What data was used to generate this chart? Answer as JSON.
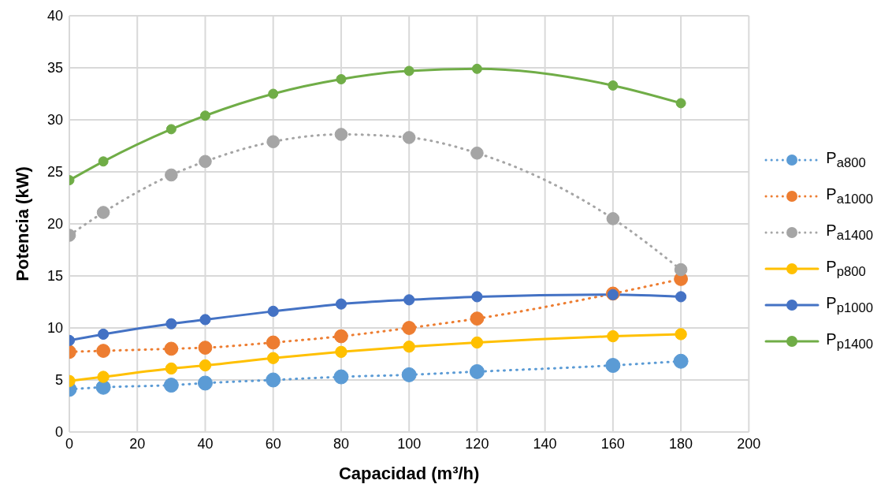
{
  "chart_data": {
    "type": "line",
    "xlabel": "Capacidad (m³/h)",
    "ylabel": "Potencia (kW)",
    "x": [
      0,
      10,
      30,
      40,
      60,
      80,
      100,
      120,
      160,
      180
    ],
    "xlim": [
      0,
      200
    ],
    "xticks": [
      0,
      20,
      40,
      60,
      80,
      100,
      120,
      140,
      160,
      180,
      200
    ],
    "ylim": [
      0,
      40
    ],
    "yticks": [
      0,
      5,
      10,
      15,
      20,
      25,
      30,
      35,
      40
    ],
    "grid": true,
    "legend": "right",
    "marker": "circle",
    "series": [
      {
        "name": "P$_{a800}$",
        "color": "#5b9bd5",
        "line_style": "dotted",
        "values": [
          4.1,
          4.3,
          4.5,
          4.7,
          5.0,
          5.3,
          5.5,
          5.8,
          6.4,
          6.8
        ]
      },
      {
        "name": "P$_{a1000}$",
        "color": "#ed7d31",
        "line_style": "dotted",
        "values": [
          7.7,
          7.8,
          8.0,
          8.1,
          8.6,
          9.2,
          10.0,
          10.9,
          13.3,
          14.7
        ]
      },
      {
        "name": "P$_{a1400}$",
        "color": "#a5a5a5",
        "line_style": "dotted",
        "values": [
          18.9,
          21.1,
          24.7,
          26.0,
          27.9,
          28.6,
          28.3,
          26.8,
          20.5,
          15.6
        ]
      },
      {
        "name": "P$_{p800}$",
        "color": "#ffc000",
        "line_style": "solid",
        "values": [
          4.9,
          5.3,
          6.1,
          6.4,
          7.1,
          7.7,
          8.2,
          8.6,
          9.2,
          9.4
        ]
      },
      {
        "name": "P$_{p1000}$",
        "color": "#4472c4",
        "line_style": "solid",
        "values": [
          8.8,
          9.4,
          10.4,
          10.8,
          11.6,
          12.3,
          12.7,
          13.0,
          13.2,
          13.0
        ]
      },
      {
        "name": "P$_{p1400}$",
        "color": "#70ad47",
        "line_style": "solid",
        "values": [
          24.2,
          26.0,
          29.1,
          30.4,
          32.5,
          33.9,
          34.7,
          34.9,
          33.3,
          31.6
        ]
      }
    ]
  }
}
